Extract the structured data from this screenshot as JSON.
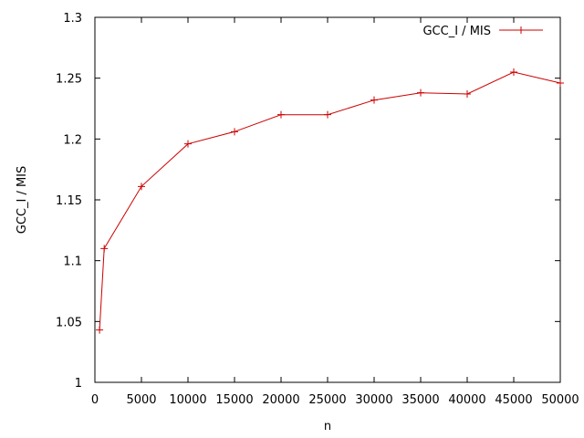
{
  "chart_data": {
    "type": "line",
    "title": "",
    "xlabel": "n",
    "ylabel": "GCC_I / MIS",
    "xlim": [
      0,
      50000
    ],
    "ylim": [
      1,
      1.3
    ],
    "xticks": [
      0,
      5000,
      10000,
      15000,
      20000,
      25000,
      30000,
      35000,
      40000,
      45000,
      50000
    ],
    "yticks": [
      1,
      1.05,
      1.1,
      1.15,
      1.2,
      1.25,
      1.3
    ],
    "ytick_labels": [
      "1",
      "1.05",
      "1.1",
      "1.15",
      "1.2",
      "1.25",
      "1.3"
    ],
    "grid": false,
    "legend": "top-right",
    "series": [
      {
        "name": "GCC_I / MIS",
        "color": "#cc0000",
        "marker": "plus",
        "x": [
          500,
          1000,
          5000,
          10000,
          15000,
          20000,
          25000,
          30000,
          35000,
          40000,
          45000,
          50000
        ],
        "y": [
          1.043,
          1.11,
          1.161,
          1.196,
          1.206,
          1.22,
          1.22,
          1.232,
          1.238,
          1.237,
          1.255,
          1.246
        ]
      }
    ]
  }
}
